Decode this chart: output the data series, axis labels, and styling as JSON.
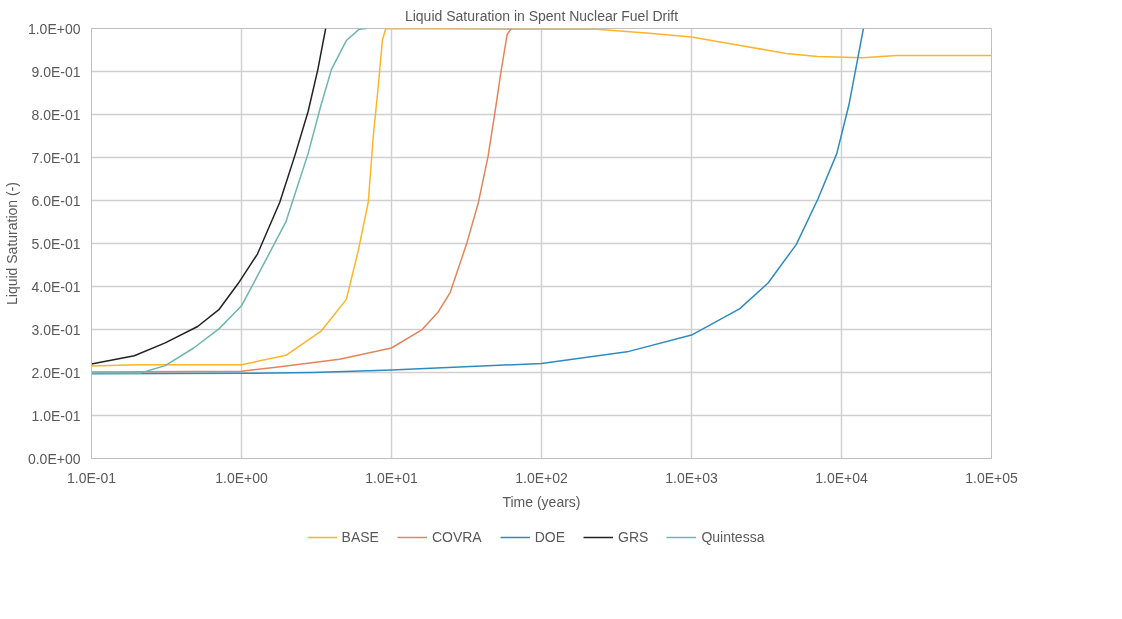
{
  "chart_data": {
    "type": "line",
    "title": "Liquid Saturation in Spent Nuclear Fuel Drift",
    "xlabel": "Time (years)",
    "ylabel": "Liquid Saturation (-)",
    "log": "x",
    "grid": true,
    "legend": "bottom",
    "marker": "none",
    "line_style": "solid",
    "xlim": [
      0.1,
      100000
    ],
    "xticks": [
      {
        "value": 0.1,
        "label": "1.0E-01"
      },
      {
        "value": 1,
        "label": "1.0E+00"
      },
      {
        "value": 10,
        "label": "1.0E+01"
      },
      {
        "value": 100,
        "label": "1.0E+02"
      },
      {
        "value": 1000,
        "label": "1.0E+03"
      },
      {
        "value": 10000,
        "label": "1.0E+04"
      },
      {
        "value": 100000,
        "label": "1.0E+05"
      }
    ],
    "ylim": [
      0,
      1
    ],
    "yticks": [
      {
        "value": 0,
        "label": "0.0E+00"
      },
      {
        "value": 0.1,
        "label": "1.0E-01"
      },
      {
        "value": 0.2,
        "label": "2.0E-01"
      },
      {
        "value": 0.3,
        "label": "3.0E-01"
      },
      {
        "value": 0.4,
        "label": "4.0E-01"
      },
      {
        "value": 0.5,
        "label": "5.0E-01"
      },
      {
        "value": 0.6,
        "label": "6.0E-01"
      },
      {
        "value": 0.7,
        "label": "7.0E-01"
      },
      {
        "value": 0.8,
        "label": "8.0E-01"
      },
      {
        "value": 0.9,
        "label": "9.0E-01"
      },
      {
        "value": 1,
        "label": "1.0E+00"
      }
    ],
    "series": [
      {
        "name": "BASE",
        "color": "#fdb42a",
        "x": [
          0.1,
          0.2,
          1,
          1.98,
          3.39,
          5.0,
          6.0,
          7.0,
          7.55,
          8.13,
          8.7,
          9.16,
          110,
          234,
          525,
          1000,
          2070,
          4270,
          6900,
          13800,
          23300,
          100000
        ],
        "values": [
          0.215,
          0.218,
          0.218,
          0.24,
          0.296,
          0.37,
          0.483,
          0.596,
          0.747,
          0.86,
          0.973,
          1.0,
          0.998,
          0.998,
          0.989,
          0.98,
          0.961,
          0.942,
          0.935,
          0.932,
          0.937,
          0.937
        ]
      },
      {
        "name": "COVRA",
        "color": "#e3855a",
        "x": [
          0.1,
          1,
          1.7,
          4.5,
          10,
          15.9,
          20.4,
          24.6,
          31.6,
          38,
          44,
          49,
          54,
          59,
          63
        ],
        "values": [
          0.201,
          0.203,
          0.212,
          0.231,
          0.257,
          0.299,
          0.34,
          0.386,
          0.498,
          0.596,
          0.702,
          0.806,
          0.905,
          0.986,
          1.0
        ]
      },
      {
        "name": "DOE",
        "color": "#2e8bc0",
        "x": [
          0.1,
          1,
          3,
          10,
          100,
          372,
          1000,
          2090,
          3240,
          5000,
          6950,
          9300,
          11200,
          12800,
          14000
        ],
        "values": [
          0.197,
          0.198,
          0.2,
          0.206,
          0.221,
          0.248,
          0.287,
          0.348,
          0.408,
          0.498,
          0.603,
          0.709,
          0.822,
          0.928,
          1.0
        ]
      },
      {
        "name": "GRS",
        "color": "#222222",
        "x": [
          0.1,
          0.193,
          0.31,
          0.51,
          0.71,
          0.955,
          1.28,
          1.8,
          2.29,
          2.78,
          3.23,
          3.64
        ],
        "values": [
          0.22,
          0.239,
          0.269,
          0.307,
          0.347,
          0.408,
          0.476,
          0.596,
          0.709,
          0.807,
          0.905,
          1.0
        ]
      },
      {
        "name": "Quintessa",
        "color": "#6db5b0",
        "x": [
          0.1,
          0.212,
          0.31,
          0.48,
          0.71,
          1.0,
          1.41,
          1.98,
          2.78,
          3.39,
          3.98,
          5.0,
          6.07,
          6.8
        ],
        "values": [
          0.199,
          0.199,
          0.216,
          0.257,
          0.302,
          0.355,
          0.453,
          0.551,
          0.709,
          0.822,
          0.905,
          0.972,
          0.998,
          1.0
        ]
      }
    ]
  }
}
